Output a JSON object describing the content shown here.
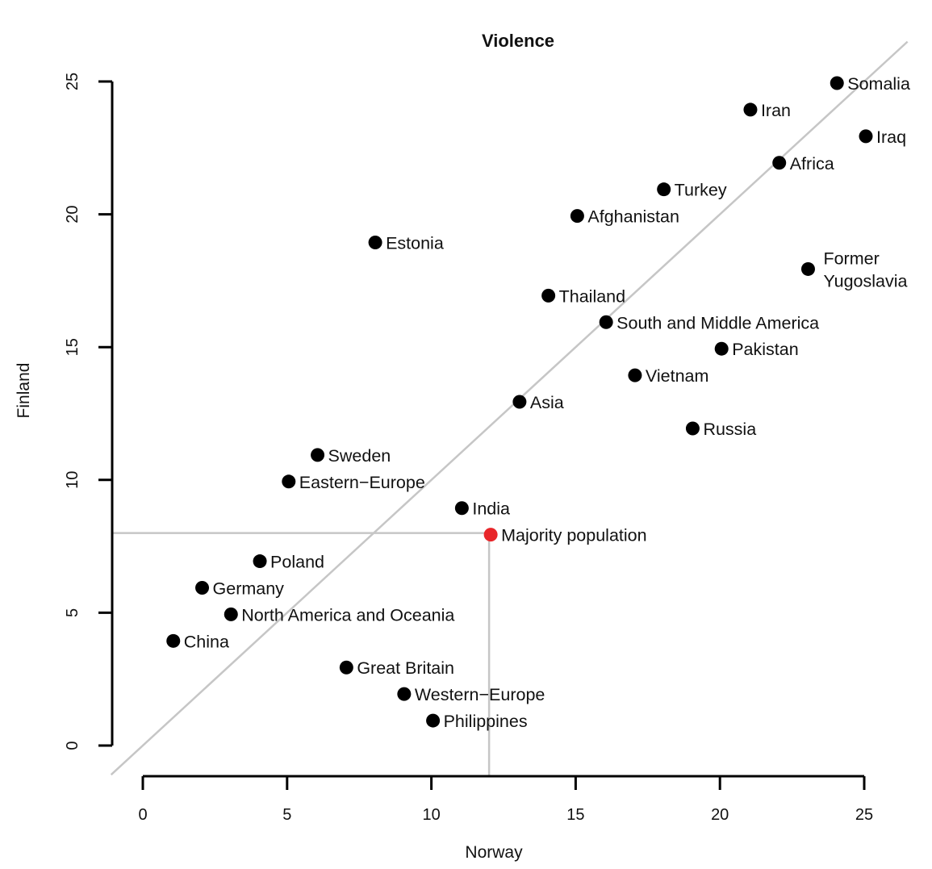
{
  "chart_data": {
    "type": "scatter",
    "title": "Violence",
    "xlabel": "Norway",
    "ylabel": "Finland",
    "xlim": [
      0,
      25
    ],
    "ylim": [
      0,
      25
    ],
    "xticks": [
      "0",
      "5",
      "10",
      "15",
      "20",
      "25"
    ],
    "yticks": [
      "0",
      "5",
      "10",
      "15",
      "20",
      "25"
    ],
    "grid": false,
    "reference_line": "y = x",
    "reference_point": {
      "x": 12,
      "y": 8
    },
    "colors": {
      "point": "#000000",
      "highlight": "#e8262a",
      "reference_line": "#c6c6c6"
    },
    "points": [
      {
        "label": "Somalia",
        "x": 24,
        "y": 25
      },
      {
        "label": "Iran",
        "x": 21,
        "y": 24
      },
      {
        "label": "Iraq",
        "x": 25,
        "y": 23
      },
      {
        "label": "Africa",
        "x": 22,
        "y": 22
      },
      {
        "label": "Turkey",
        "x": 18,
        "y": 21
      },
      {
        "label": "Afghanistan",
        "x": 15,
        "y": 20
      },
      {
        "label": "Estonia",
        "x": 8,
        "y": 19
      },
      {
        "label": "Former Yugoslavia",
        "label_lines": [
          "Former",
          "Yugoslavia"
        ],
        "x": 23,
        "y": 18
      },
      {
        "label": "Thailand",
        "x": 14,
        "y": 17
      },
      {
        "label": "South and Middle America",
        "x": 16,
        "y": 16
      },
      {
        "label": "Pakistan",
        "x": 20,
        "y": 15
      },
      {
        "label": "Vietnam",
        "x": 17,
        "y": 14
      },
      {
        "label": "Asia",
        "x": 13,
        "y": 13
      },
      {
        "label": "Russia",
        "x": 19,
        "y": 12
      },
      {
        "label": "Sweden",
        "x": 6,
        "y": 11
      },
      {
        "label": "Eastern−Europe",
        "x": 5,
        "y": 10
      },
      {
        "label": "India",
        "x": 11,
        "y": 9
      },
      {
        "label": "Majority population",
        "x": 12,
        "y": 8,
        "highlight": true
      },
      {
        "label": "Poland",
        "x": 4,
        "y": 7
      },
      {
        "label": "Germany",
        "x": 2,
        "y": 6
      },
      {
        "label": "North America and Oceania",
        "x": 3,
        "y": 5
      },
      {
        "label": "China",
        "x": 1,
        "y": 4
      },
      {
        "label": "Great Britain",
        "x": 7,
        "y": 3
      },
      {
        "label": "Western−Europe",
        "x": 9,
        "y": 2
      },
      {
        "label": "Philippines",
        "x": 10,
        "y": 1
      }
    ]
  }
}
